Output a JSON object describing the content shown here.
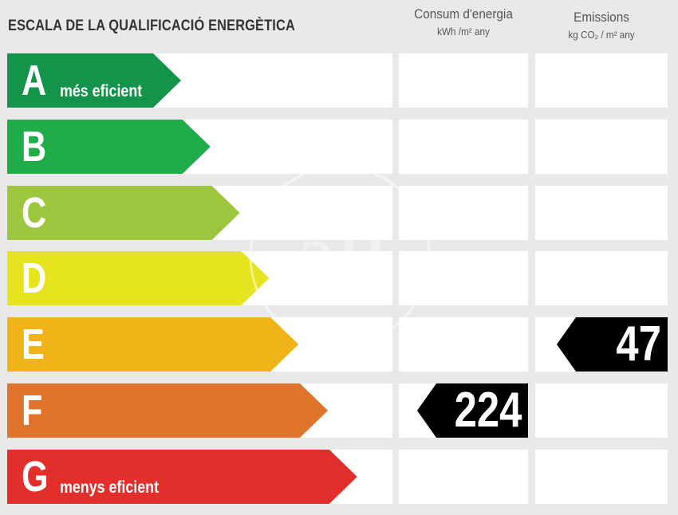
{
  "title": "ESCALA DE LA QUALIFICACIÓ ENERGÈTICA",
  "consum": {
    "heading": "Consum d'energia",
    "unit": "kWh /m² any"
  },
  "emissions": {
    "heading": "Emissions",
    "unit": "kg CO₂ / m² any"
  },
  "ratings": [
    {
      "letter": "A",
      "label": "més eficient",
      "color": "#14944b"
    },
    {
      "letter": "B",
      "label": "",
      "color": "#21ac4b"
    },
    {
      "letter": "C",
      "label": "",
      "color": "#9cc63d"
    },
    {
      "letter": "D",
      "label": "",
      "color": "#e6e41e"
    },
    {
      "letter": "E",
      "label": "",
      "color": "#f0b318"
    },
    {
      "letter": "F",
      "label": "",
      "color": "#e0732a"
    },
    {
      "letter": "G",
      "label": "menys eficient",
      "color": "#e32f2c"
    }
  ],
  "consum_value": {
    "value": "224",
    "rating": "F"
  },
  "emissions_value": {
    "value": "47",
    "rating": "E"
  }
}
